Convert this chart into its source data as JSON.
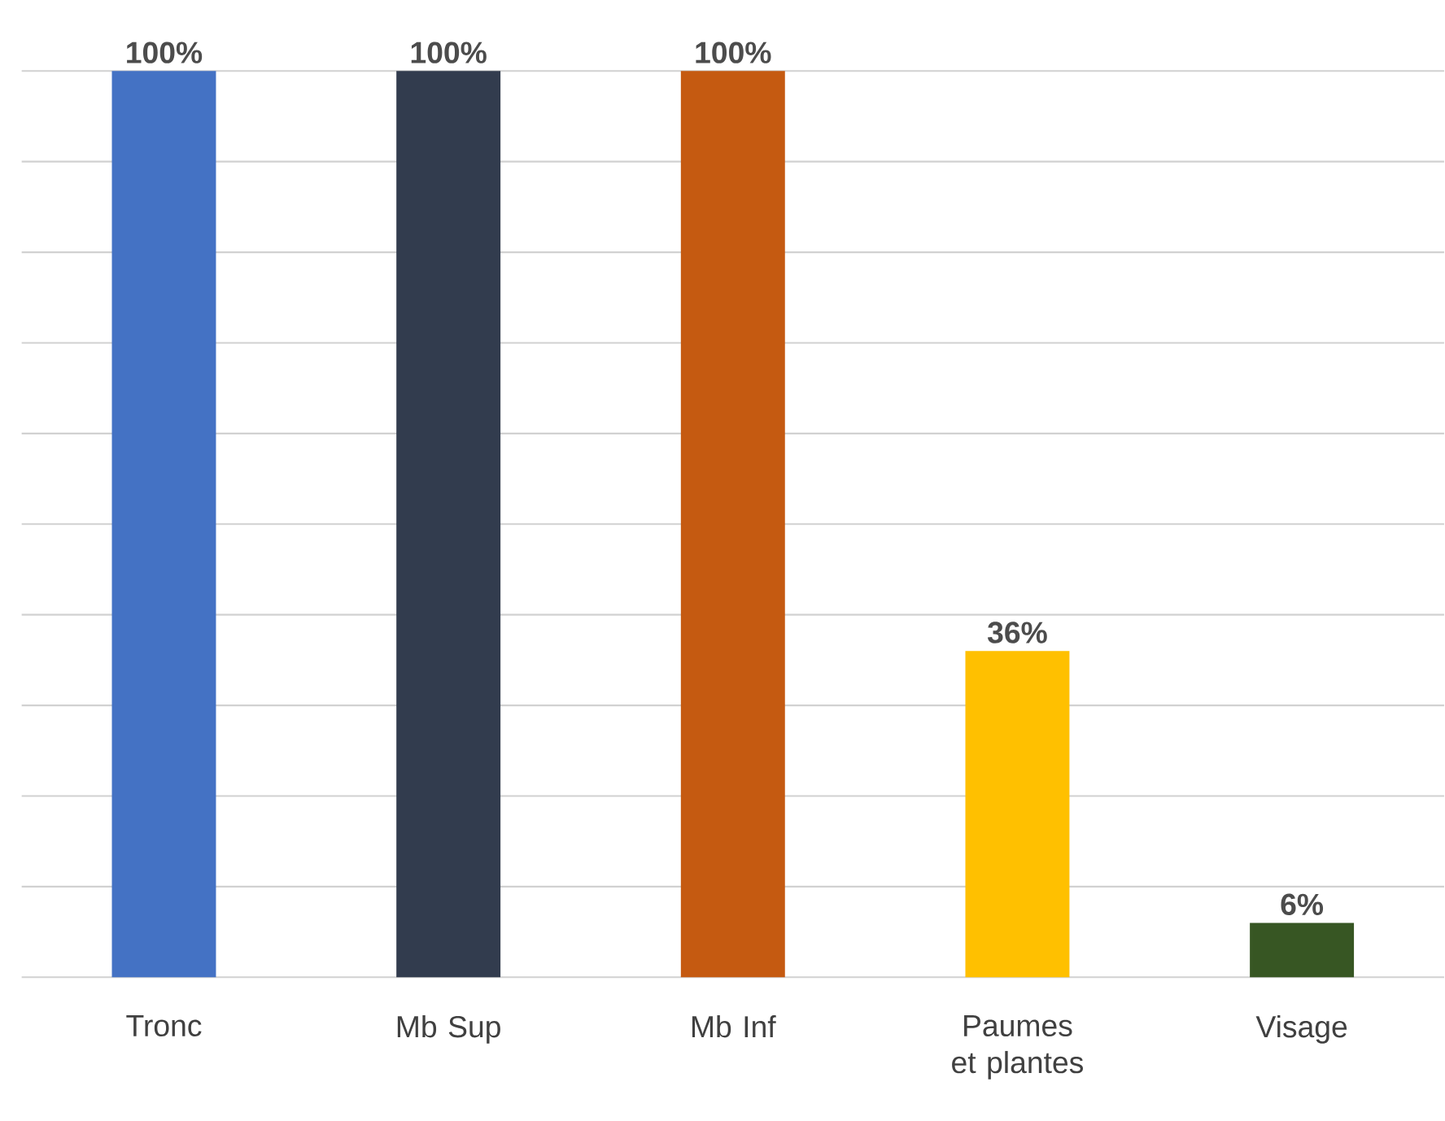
{
  "chart_data": {
    "type": "bar",
    "categories": [
      "Tronc",
      "Mb Sup",
      "Mb Inf",
      "Paumes et plantes",
      "Visage"
    ],
    "values": [
      100,
      100,
      100,
      36,
      6
    ],
    "colors": [
      "#4472c4",
      "#323c4e",
      "#c55a11",
      "#ffc000",
      "#375623"
    ],
    "value_labels": [
      "100%",
      "100%",
      "100%",
      "36%",
      "6%"
    ],
    "ylim": [
      0,
      100
    ],
    "yticks": [
      {
        "value": 0,
        "label": null
      },
      {
        "value": 10,
        "label": null
      },
      {
        "value": 20,
        "label": null
      },
      {
        "value": 30,
        "label": null
      },
      {
        "value": 40,
        "label": null
      },
      {
        "value": 50,
        "label": null
      },
      {
        "value": 60,
        "label": null
      },
      {
        "value": 70,
        "label": null
      },
      {
        "value": 80,
        "label": null
      },
      {
        "value": 90,
        "label": null
      },
      {
        "value": 100,
        "label": null
      }
    ],
    "grid": "y",
    "tick_labels": "x"
  }
}
